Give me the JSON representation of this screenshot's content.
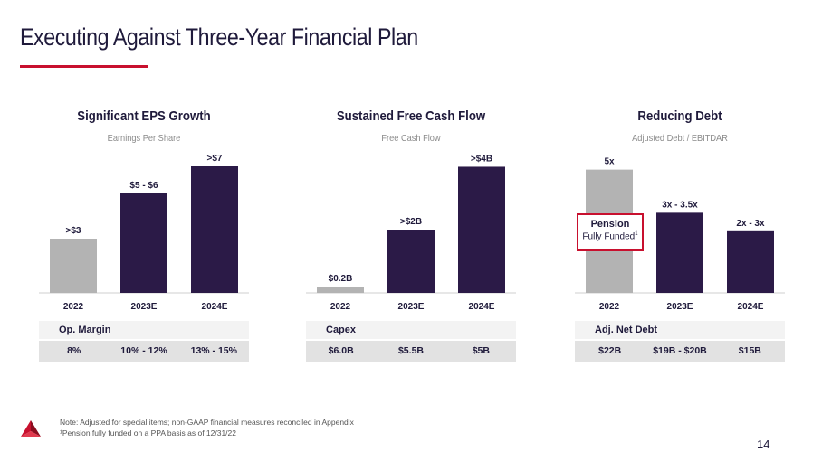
{
  "slide": {
    "title": "Executing Against Three-Year Financial Plan",
    "page_number": "14",
    "footnotes": [
      "Note: Adjusted for special items; non-GAAP financial measures reconciled in Appendix",
      "¹Pension fully funded on a PPA basis as of 12/31/22"
    ],
    "colors": {
      "accent": "#c8102e",
      "bar_dark": "#2b1a47",
      "bar_gray": "#b3b3b3",
      "text": "#1f1a3b"
    }
  },
  "panels": [
    {
      "title": "Significant EPS Growth",
      "subtitle": "Earnings Per Share",
      "metric_label": "Op. Margin",
      "metric_values": [
        "8%",
        "10% - 12%",
        "13% - 15%"
      ]
    },
    {
      "title": "Sustained Free Cash Flow",
      "subtitle": "Free Cash Flow",
      "metric_label": "Capex",
      "metric_values": [
        "$6.0B",
        "$5.5B",
        "$5B"
      ]
    },
    {
      "title": "Reducing Debt",
      "subtitle": "Adjusted Debt / EBITDAR",
      "metric_label": "Adj. Net Debt",
      "metric_values": [
        "$22B",
        "$19B - $20B",
        "$15B"
      ],
      "callout": {
        "line1": "Pension",
        "line2": "Fully Funded",
        "sup": "1"
      }
    }
  ],
  "chart_data": [
    {
      "type": "bar",
      "title": "Significant EPS Growth",
      "subtitle": "Earnings Per Share",
      "categories": [
        "2022",
        "2023E",
        "2024E"
      ],
      "values": [
        3,
        5.5,
        7
      ],
      "data_labels": [
        ">$3",
        "$5 - $6",
        ">$7"
      ],
      "ylim": [
        0,
        7.5
      ]
    },
    {
      "type": "bar",
      "title": "Sustained Free Cash Flow",
      "subtitle": "Free Cash Flow",
      "categories": [
        "2022",
        "2023E",
        "2024E"
      ],
      "values": [
        0.2,
        2,
        4
      ],
      "data_labels": [
        "$0.2B",
        ">$2B",
        ">$4B"
      ],
      "ylim": [
        0,
        4.3
      ]
    },
    {
      "type": "bar",
      "title": "Reducing Debt",
      "subtitle": "Adjusted Debt / EBITDAR",
      "categories": [
        "2022",
        "2023E",
        "2024E"
      ],
      "values": [
        5,
        3.25,
        2.5
      ],
      "data_labels": [
        "5x",
        "3x - 3.5x",
        "2x - 3x"
      ],
      "ylim": [
        0,
        5.5
      ]
    }
  ]
}
